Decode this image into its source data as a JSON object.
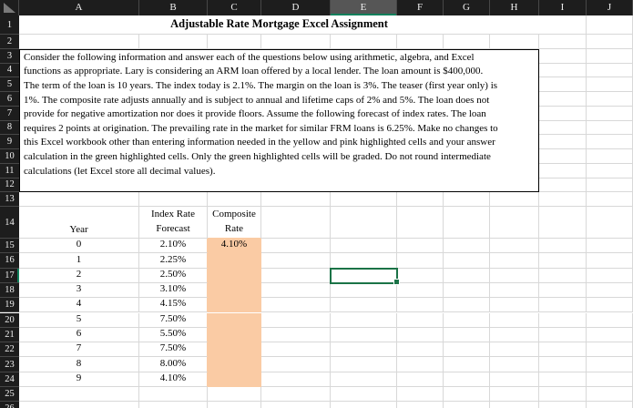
{
  "grid": {
    "column_letters": [
      "A",
      "B",
      "C",
      "D",
      "E",
      "F",
      "G",
      "H",
      "I",
      "J"
    ],
    "row_numbers": [
      "1",
      "2",
      "3",
      "4",
      "5",
      "6",
      "7",
      "8",
      "9",
      "10",
      "11",
      "12",
      "13",
      "14",
      "15",
      "16",
      "17",
      "18",
      "19",
      "20",
      "21",
      "22",
      "23",
      "24",
      "25",
      "26"
    ],
    "selected_column": "E",
    "selected_row": "17",
    "selected_cell": "E17"
  },
  "title_cell": {
    "text": "Adjustable Rate Mortgage Excel Assignment"
  },
  "instructions": {
    "lines": [
      "Consider the following information and answer each of the questions below using arithmetic, algebra, and Excel",
      "functions as appropriate.  Lary is considering an ARM loan offered by a local lender.  The loan amount is $400,000.",
      "The term of the loan is 10 years.  The index today is 2.1%.  The margin on the loan is 3%.  The teaser (first year only) is",
      "1%.  The composite rate adjusts annually and is subject to annual and lifetime caps of 2% and 5%.  The loan does not",
      "provide for negative amortization nor does it provide floors.  Assume the following forecast of index rates.  The loan",
      "requires 2 points at origination.  The prevailing rate in the market for similar FRM loans is 6.25%.  Make no changes to",
      "this Excel workbook other than entering information needed in the yellow and pink highlighted cells and your answer",
      "calculation in the green highlighted cells.  Only the green highlighted cells will be graded.  Do not round intermediate",
      "calculations (let Excel store all decimal values)."
    ]
  },
  "rate_table": {
    "year_header": "Year",
    "index_header_line1": "Index Rate",
    "index_header_line2": "Forecast",
    "composite_header_line1": "Composite",
    "composite_header_line2": "Rate",
    "rows": [
      {
        "year": "0",
        "index_rate": "2.10%",
        "composite_rate": "4.10%"
      },
      {
        "year": "1",
        "index_rate": "2.25%",
        "composite_rate": ""
      },
      {
        "year": "2",
        "index_rate": "2.50%",
        "composite_rate": ""
      },
      {
        "year": "3",
        "index_rate": "3.10%",
        "composite_rate": ""
      },
      {
        "year": "4",
        "index_rate": "4.15%",
        "composite_rate": ""
      },
      {
        "year": "5",
        "index_rate": "7.50%",
        "composite_rate": ""
      },
      {
        "year": "6",
        "index_rate": "5.50%",
        "composite_rate": ""
      },
      {
        "year": "7",
        "index_rate": "7.50%",
        "composite_rate": ""
      },
      {
        "year": "8",
        "index_rate": "8.00%",
        "composite_rate": ""
      },
      {
        "year": "9",
        "index_rate": "4.10%",
        "composite_rate": ""
      }
    ]
  },
  "colors": {
    "selection_green": "#1b7347",
    "header_accent_green": "#10805c",
    "highlight_orange": "#facba4",
    "header_bg": "#1d1d1d",
    "header_selected_bg": "#565656",
    "gridline": "#d8d8d8"
  }
}
